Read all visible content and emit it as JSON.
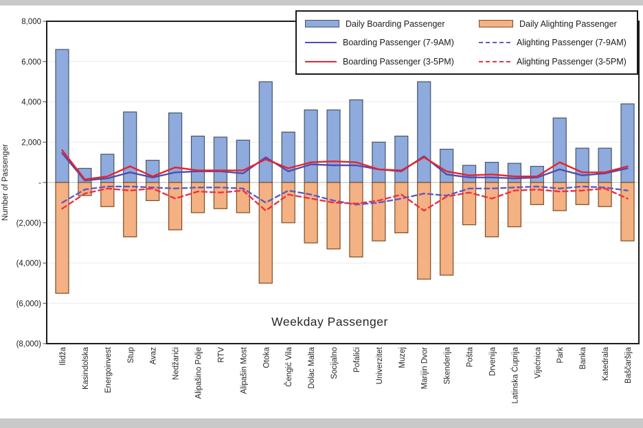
{
  "chart_data": {
    "type": "bar",
    "subtype": "bar-line-combo",
    "title": "Weekday Passenger",
    "ylabel": "Number of Passenger",
    "ylim": [
      -8000,
      8000
    ],
    "grid": "faint horizontal",
    "legend_position": "top-right",
    "yticks": [
      {
        "label": "8,000",
        "value": 8000
      },
      {
        "label": "6,000",
        "value": 6000
      },
      {
        "label": "4,000",
        "value": 4000
      },
      {
        "label": "2,000",
        "value": 2000
      },
      {
        "label": "-",
        "value": 0
      },
      {
        "label": "(2,000)",
        "value": -2000
      },
      {
        "label": "(4,000)",
        "value": -4000
      },
      {
        "label": "(6,000)",
        "value": -6000
      },
      {
        "label": "(8,000)",
        "value": -8000
      }
    ],
    "categories": [
      "Ilidža",
      "Kasindolska",
      "Energoinvest",
      "Stup",
      "Avaz",
      "Nedžarići",
      "Alipašino Polje",
      "RTV",
      "Alipašin Most",
      "Otoka",
      "Čengić Vila",
      "Dolac Malta",
      "Socijalno",
      "Pofalići",
      "Univerzitet",
      "Muzej",
      "Marijin Dvor",
      "Skenderija",
      "Pošta",
      "Drvenija",
      "Latinska Ćuprija",
      "Vijećnica",
      "Park",
      "Banka",
      "Katedrala",
      "Baščaršija"
    ],
    "series": [
      {
        "name": "Daily Boarding Passenger",
        "type": "bar",
        "style": "solid",
        "color": "#8faadc",
        "border": "#44546a",
        "values": [
          6600,
          700,
          1400,
          3500,
          1100,
          3450,
          2300,
          2250,
          2100,
          5000,
          2500,
          3600,
          3600,
          4100,
          2000,
          2300,
          5000,
          1650,
          850,
          1000,
          950,
          800,
          3200,
          1700,
          1700,
          3900
        ]
      },
      {
        "name": "Daily Alighting Passenger",
        "type": "bar",
        "style": "solid",
        "color": "#f4b183",
        "border": "#7b4b21",
        "values": [
          -5500,
          -650,
          -1200,
          -2700,
          -900,
          -2350,
          -1500,
          -1300,
          -1500,
          -5000,
          -2000,
          -3000,
          -3300,
          -3700,
          -2900,
          -2500,
          -4800,
          -4600,
          -2100,
          -2700,
          -2200,
          -1100,
          -1400,
          -1100,
          -1200,
          -2900
        ]
      },
      {
        "name": "Boarding Passenger (7-9AM)",
        "type": "line",
        "style": "solid",
        "color": "#4d4dae",
        "values": [
          1450,
          100,
          200,
          500,
          250,
          500,
          550,
          550,
          450,
          1250,
          550,
          900,
          850,
          850,
          650,
          550,
          1300,
          400,
          250,
          250,
          200,
          250,
          650,
          350,
          450,
          700
        ]
      },
      {
        "name": "Alighting Passenger (7-9AM)",
        "type": "line",
        "style": "dashed",
        "color": "#6157c6",
        "values": [
          -1000,
          -350,
          -200,
          -200,
          -250,
          -300,
          -250,
          -250,
          -300,
          -1000,
          -400,
          -600,
          -900,
          -1100,
          -1000,
          -800,
          -550,
          -650,
          -300,
          -300,
          -250,
          -200,
          -300,
          -200,
          -250,
          -400
        ]
      },
      {
        "name": "Boarding Passenger (3-5PM)",
        "type": "line",
        "style": "solid",
        "color": "#e8222e",
        "values": [
          1600,
          150,
          300,
          800,
          300,
          750,
          600,
          600,
          600,
          1150,
          700,
          1000,
          1050,
          1000,
          650,
          600,
          1250,
          550,
          350,
          400,
          300,
          300,
          1000,
          500,
          500,
          800
        ]
      },
      {
        "name": "Alighting Passenger (3-5PM)",
        "type": "line",
        "style": "dashed",
        "color": "#f0303e",
        "values": [
          -1300,
          -550,
          -300,
          -400,
          -300,
          -800,
          -450,
          -500,
          -400,
          -1400,
          -600,
          -800,
          -1000,
          -1050,
          -900,
          -600,
          -1400,
          -700,
          -500,
          -800,
          -400,
          -350,
          -450,
          -400,
          -300,
          -800
        ]
      }
    ]
  }
}
